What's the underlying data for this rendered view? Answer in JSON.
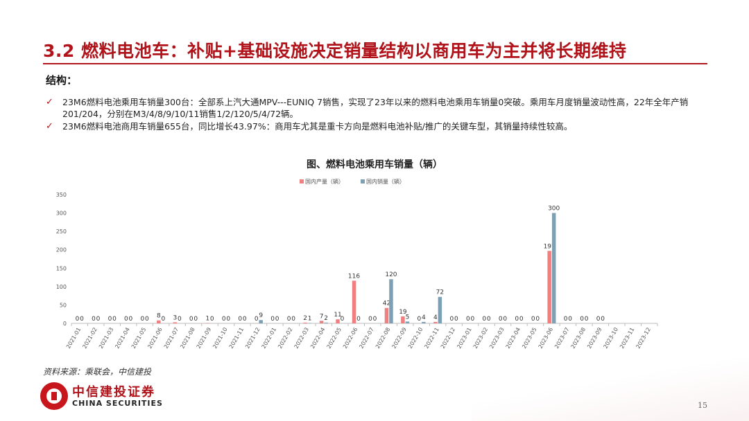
{
  "slide": {
    "title": "3.2 燃料电池车：补贴+基础设施决定销量结构以商用车为主并将长期维持",
    "section_head": "结构：",
    "bullets": [
      "23M6燃料电池乘用车销量300台：全部系上汽大通MPV---EUNIQ  7销售，实现了23年以来的燃料电池乘用车销量0突破。乘用车月度销量波动性高，22年全年产销201/204，分别在M3/4/8/9/10/11销售1/2/120/5/4/72辆。",
      "23M6燃料电池商用车销量655台，同比增长43.97%：商用车尤其是重卡方向是燃料电池补贴/推广的关键车型，其销量持续性较高。"
    ],
    "source": "资料来源：乘联会，中信建投",
    "logo_cn": "中信建投证券",
    "logo_en": "CHINA SECURITIES",
    "page_number": "15"
  },
  "colors": {
    "accent": "#b0131a",
    "production": "#f08080",
    "sales": "#7f9fb5"
  },
  "chart_data": {
    "type": "bar",
    "title": "图、燃料电池乘用车销量（辆）",
    "legend_position": "top",
    "ylim": [
      0,
      350
    ],
    "yticks": [
      0,
      50,
      100,
      150,
      200,
      250,
      300,
      350
    ],
    "categories": [
      "2021-01",
      "2021-02",
      "2021-03",
      "2021-04",
      "2021-05",
      "2021-06",
      "2021-07",
      "2021-08",
      "2021-09",
      "2021-10",
      "2021-11",
      "2021-12",
      "2022-01",
      "2022-02",
      "2022-03",
      "2022-04",
      "2022-05",
      "2022-06",
      "2022-07",
      "2022-08",
      "2022-09",
      "2022-10",
      "2022-11",
      "2022-12",
      "2023-01",
      "2023-02",
      "2023-03",
      "2023-04",
      "2023-05",
      "2023-06",
      "2023-07",
      "2023-08",
      "2023-09",
      "2023-10",
      "2023-11",
      "2023-12"
    ],
    "series": [
      {
        "name": "国内产量（辆）",
        "values": [
          0,
          0,
          0,
          0,
          0,
          8,
          3,
          0,
          1,
          0,
          0,
          0,
          0,
          0,
          2,
          7,
          11,
          116,
          0,
          42,
          19,
          0,
          4,
          0,
          0,
          0,
          0,
          0,
          0,
          197,
          0,
          0,
          0,
          null,
          null,
          null
        ]
      },
      {
        "name": "国内销量（辆）",
        "values": [
          0,
          0,
          0,
          0,
          0,
          0,
          0,
          0,
          0,
          0,
          0,
          9,
          0,
          0,
          1,
          2,
          0,
          0,
          0,
          120,
          5,
          4,
          72,
          0,
          0,
          0,
          0,
          0,
          0,
          300,
          0,
          0,
          0,
          null,
          null,
          null
        ]
      }
    ]
  }
}
